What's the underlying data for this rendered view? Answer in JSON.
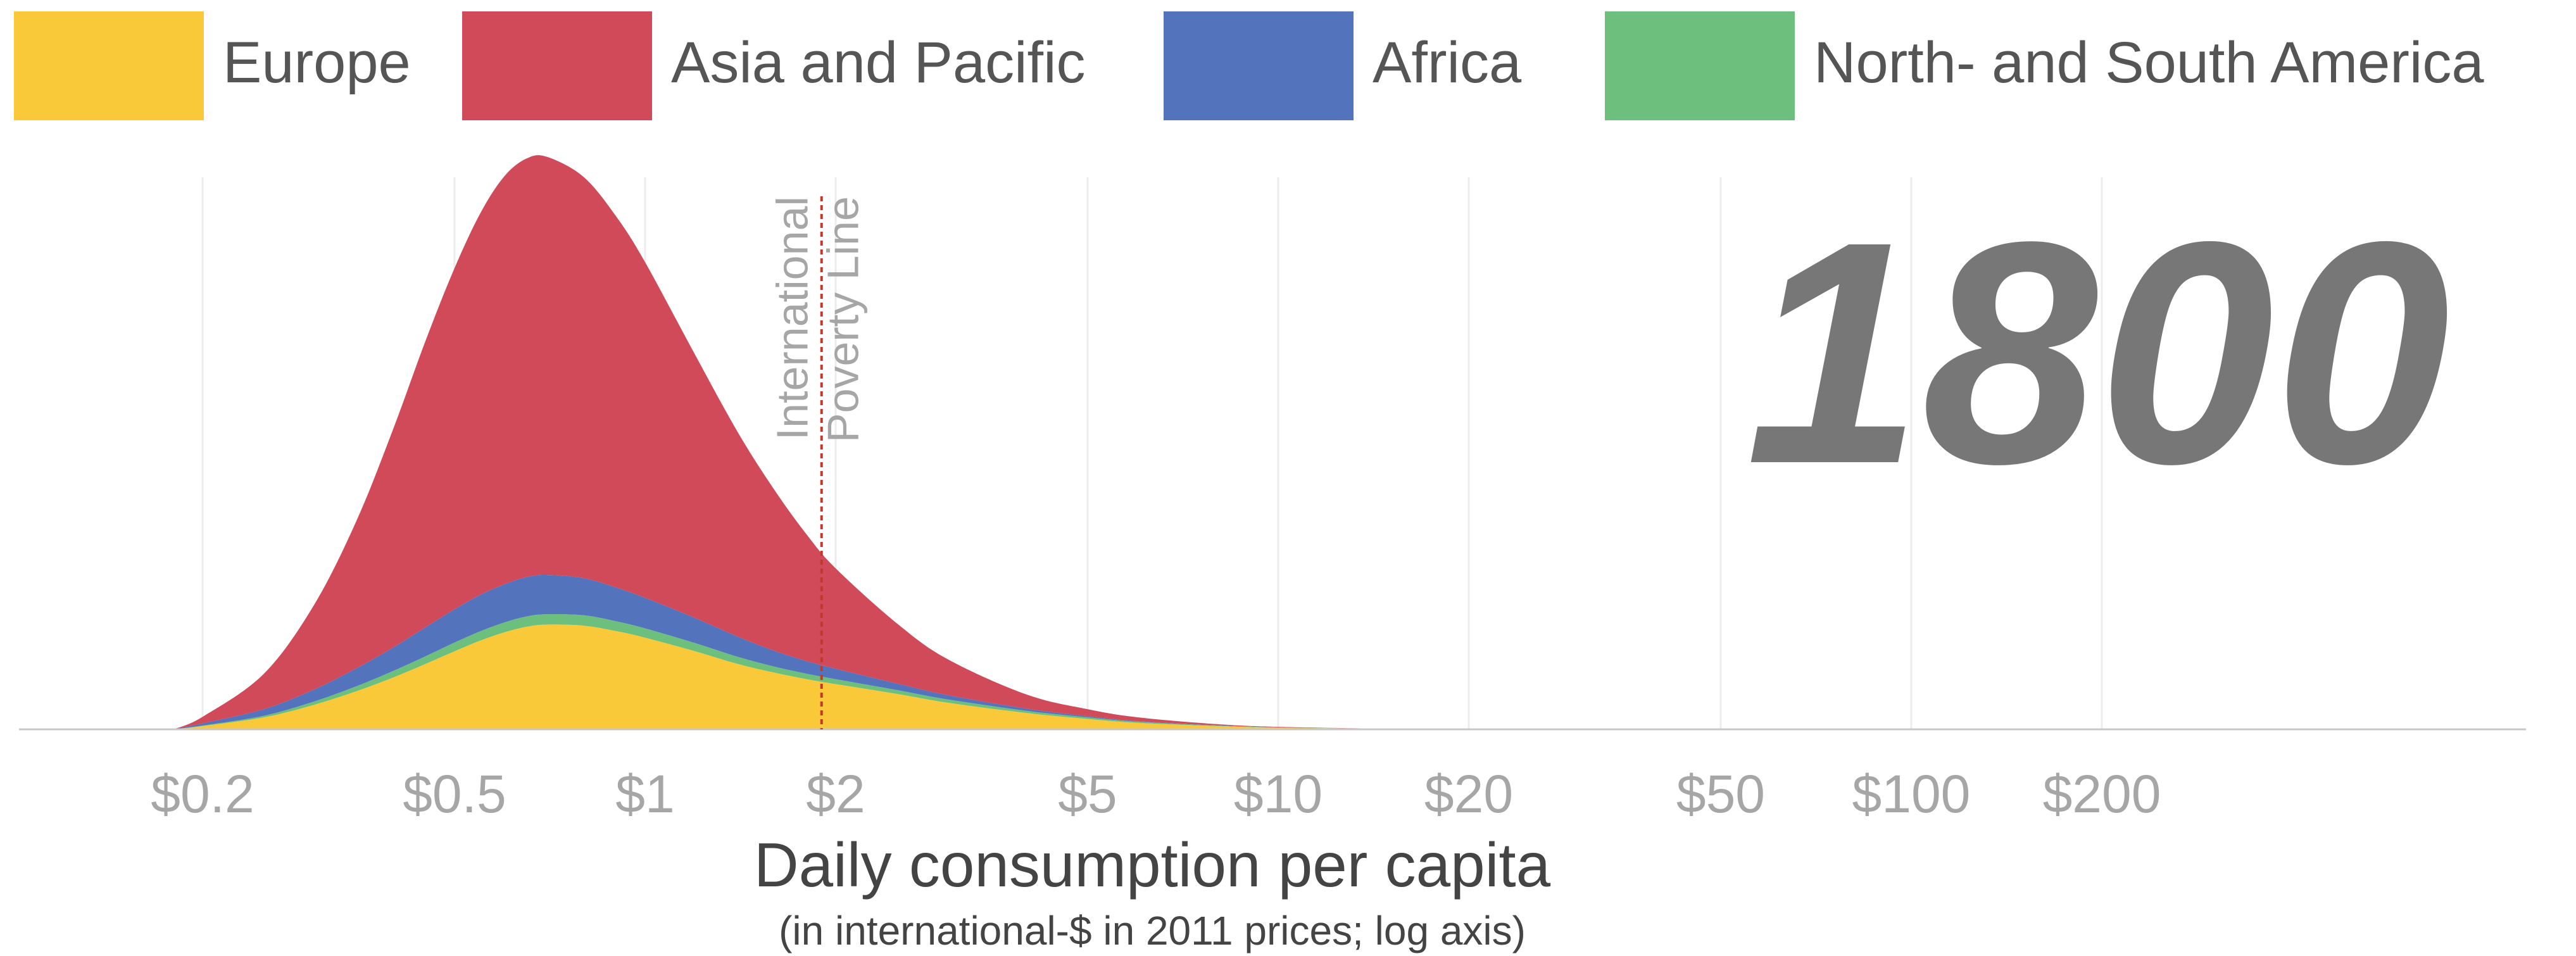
{
  "chart_data": {
    "type": "area",
    "stacked": true,
    "year": "1800",
    "xlabel": "Daily consumption per capita",
    "xlabel_note": "(in international-$ in 2011 prices; log axis)",
    "x_scale": "log",
    "xlim": [
      0.15,
      700
    ],
    "ticks": [
      {
        "value": 0.2,
        "label": "$0.2"
      },
      {
        "value": 0.5,
        "label": "$0.5"
      },
      {
        "value": 1,
        "label": "$1"
      },
      {
        "value": 2,
        "label": "$2"
      },
      {
        "value": 5,
        "label": "$5"
      },
      {
        "value": 10,
        "label": "$10"
      },
      {
        "value": 20,
        "label": "$20"
      },
      {
        "value": 50,
        "label": "$50"
      },
      {
        "value": 100,
        "label": "$100"
      },
      {
        "value": 200,
        "label": "$200"
      }
    ],
    "grid": true,
    "legend_position": "top",
    "reference_line": {
      "x": 1.9,
      "label_line1": "International",
      "label_line2": "Poverty Line",
      "color": "#c0392b"
    },
    "x": [
      0.18,
      0.2,
      0.25,
      0.3,
      0.35,
      0.4,
      0.45,
      0.5,
      0.55,
      0.6,
      0.65,
      0.7,
      0.8,
      0.9,
      1,
      1.2,
      1.4,
      1.6,
      1.8,
      2,
      2.5,
      3,
      4,
      5,
      6,
      8,
      10,
      15,
      20,
      30
    ],
    "series": [
      {
        "name": "Europe",
        "color": "#f9c93a",
        "values": [
          0,
          0.6,
          2.2,
          4.5,
          7,
          9.5,
          12,
          14.3,
          16.3,
          17.8,
          18.8,
          19.2,
          19.0,
          18.0,
          16.8,
          14.3,
          12.0,
          10.4,
          9.2,
          8.3,
          6.5,
          4.9,
          3.0,
          1.9,
          1.2,
          0.6,
          0.3,
          0.1,
          0,
          0
        ]
      },
      {
        "name": "North- and South America",
        "color": "#6cbf7c",
        "values": [
          0,
          0.1,
          0.3,
          0.6,
          0.9,
          1.2,
          1.4,
          1.6,
          1.7,
          1.8,
          1.9,
          1.9,
          1.9,
          1.8,
          1.7,
          1.5,
          1.3,
          1.1,
          1.0,
          0.9,
          0.7,
          0.6,
          0.4,
          0.3,
          0.2,
          0.1,
          0.05,
          0,
          0,
          0
        ]
      },
      {
        "name": "Africa",
        "color": "#5473bd",
        "values": [
          0,
          0.4,
          1.2,
          2.2,
          3.3,
          4.3,
          5.3,
          6.1,
          6.7,
          7.0,
          7.2,
          7.2,
          6.8,
          6.2,
          5.6,
          4.6,
          3.7,
          2.9,
          2.3,
          1.9,
          1.2,
          0.8,
          0.4,
          0.2,
          0.1,
          0.05,
          0,
          0,
          0,
          0
        ]
      },
      {
        "name": "Asia and Pacific",
        "color": "#d04a5a",
        "values": [
          0,
          1.2,
          6.5,
          15.5,
          27,
          40,
          52.5,
          62.5,
          70,
          74.8,
          76.7,
          76.6,
          73.5,
          68,
          61.5,
          48.2,
          37.5,
          29.5,
          23.2,
          18.4,
          11,
          6.6,
          2.6,
          1.3,
          0.7,
          0.2,
          0.1,
          0,
          0,
          0
        ]
      }
    ],
    "ylim": [
      0,
      100
    ],
    "legend_order": [
      "Europe",
      "Asia and Pacific",
      "Africa",
      "North- and South America"
    ]
  }
}
